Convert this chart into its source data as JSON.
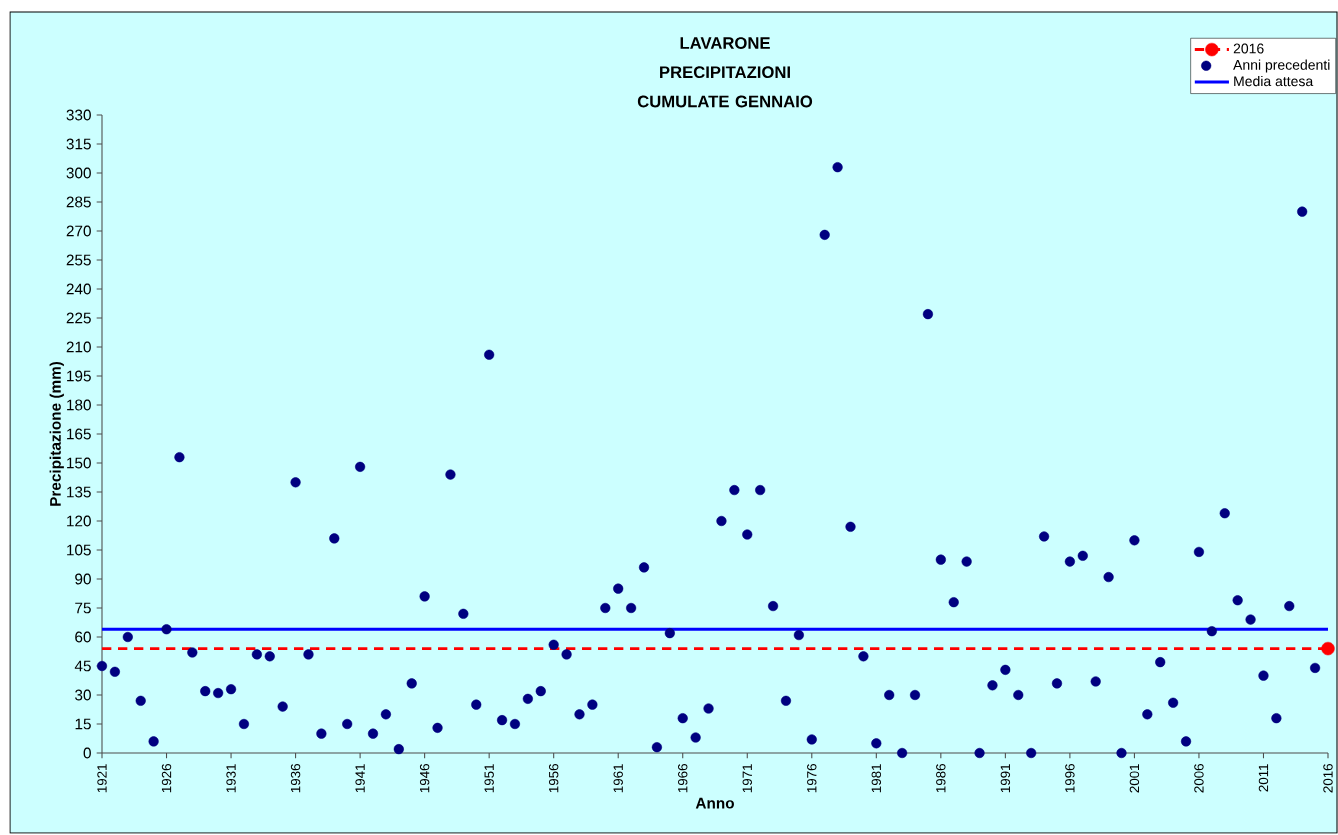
{
  "chart_data": {
    "type": "scatter",
    "title": "LAVARONE",
    "subtitle": "PRECIPITAZIONI CUMULATE GENNAIO",
    "xlabel": "Anno",
    "ylabel": "Precipitazione (mm)",
    "xlim": [
      1921,
      2016
    ],
    "xticks": [
      1921,
      1926,
      1931,
      1936,
      1941,
      1946,
      1951,
      1956,
      1961,
      1966,
      1971,
      1976,
      1981,
      1986,
      1991,
      1996,
      2001,
      2006,
      2011,
      2016
    ],
    "ylim": [
      0,
      330
    ],
    "yticks": [
      0,
      15,
      30,
      45,
      60,
      75,
      90,
      105,
      120,
      135,
      150,
      165,
      180,
      195,
      210,
      225,
      240,
      255,
      270,
      285,
      300,
      315,
      330
    ],
    "grid": false,
    "legend": "top right",
    "marker": "circle",
    "ref_lines": [
      {
        "axis": "y",
        "value": 54,
        "color": "#ff0000",
        "line_style": "dashed"
      }
    ],
    "series": [
      {
        "name": "2016",
        "color": "#ff0000",
        "line_style": "dashed",
        "x": [
          2016
        ],
        "values": [
          54
        ]
      },
      {
        "name": "Anni precedenti",
        "color": "#000080",
        "x": [
          1921,
          1922,
          1923,
          1924,
          1925,
          1926,
          1927,
          1928,
          1929,
          1930,
          1931,
          1932,
          1933,
          1934,
          1935,
          1936,
          1937,
          1938,
          1939,
          1940,
          1941,
          1942,
          1943,
          1944,
          1945,
          1946,
          1947,
          1948,
          1949,
          1950,
          1951,
          1952,
          1953,
          1954,
          1955,
          1956,
          1957,
          1958,
          1959,
          1960,
          1961,
          1962,
          1963,
          1964,
          1965,
          1966,
          1967,
          1968,
          1969,
          1970,
          1971,
          1972,
          1973,
          1974,
          1975,
          1976,
          1977,
          1978,
          1979,
          1980,
          1981,
          1982,
          1983,
          1984,
          1985,
          1986,
          1987,
          1988,
          1989,
          1990,
          1991,
          1992,
          1993,
          1994,
          1995,
          1996,
          1997,
          1998,
          1999,
          2000,
          2001,
          2002,
          2003,
          2004,
          2005,
          2006,
          2007,
          2008,
          2009,
          2010,
          2011,
          2012,
          2013,
          2014,
          2015
        ],
        "values": [
          45,
          42,
          60,
          27,
          6,
          64,
          153,
          52,
          32,
          31,
          33,
          15,
          51,
          50,
          24,
          140,
          51,
          10,
          111,
          15,
          148,
          10,
          20,
          2,
          36,
          81,
          13,
          144,
          72,
          25,
          206,
          17,
          15,
          28,
          32,
          56,
          51,
          20,
          25,
          75,
          85,
          75,
          96,
          3,
          62,
          18,
          8,
          23,
          120,
          136,
          113,
          136,
          76,
          27,
          61,
          7,
          268,
          303,
          117,
          50,
          5,
          30,
          0,
          30,
          227,
          100,
          78,
          99,
          0,
          35,
          43,
          30,
          0,
          112,
          36,
          99,
          102,
          37,
          91,
          0,
          110,
          20,
          47,
          26,
          6,
          104,
          63,
          124,
          79,
          69,
          40,
          18,
          76,
          280,
          44
        ]
      },
      {
        "name": "Media attesa",
        "type": "line",
        "color": "#0000ff",
        "marker": "none",
        "x": [
          1921,
          2016
        ],
        "values": [
          64,
          64
        ]
      }
    ]
  }
}
